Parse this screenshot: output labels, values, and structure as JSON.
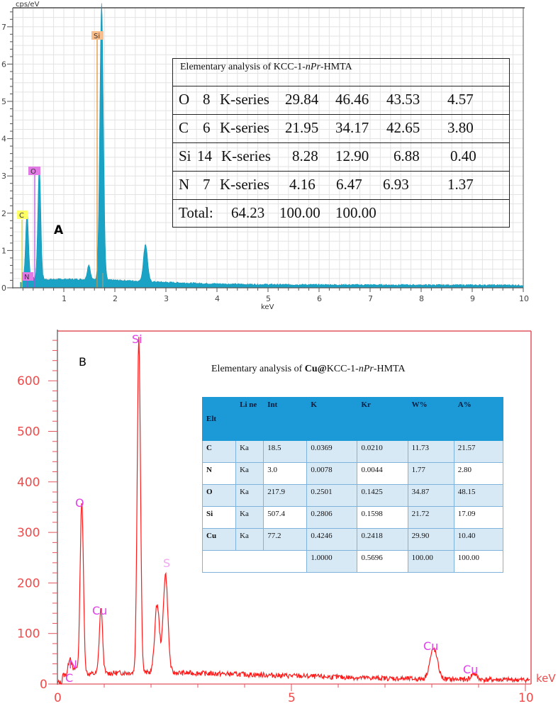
{
  "chart_data": [
    {
      "panel": "A",
      "type": "area",
      "title": "",
      "panel_label": "A",
      "xlabel": "keV",
      "ylabel": "cps/eV",
      "xlim": [
        0,
        10
      ],
      "ylim": [
        0,
        7.5
      ],
      "x_ticks": [
        "1",
        "2",
        "3",
        "4",
        "5",
        "6",
        "7",
        "8",
        "9",
        "10"
      ],
      "y_ticks": [
        "0",
        "1",
        "2",
        "3",
        "4",
        "5",
        "6",
        "7"
      ],
      "grid": true,
      "series_color": "#1aa3c4",
      "peaks": [
        {
          "element": "C",
          "x": 0.28,
          "y": 1.85,
          "label_bg": "#ffff66"
        },
        {
          "element": "N",
          "x": 0.39,
          "y": 0.15,
          "label_bg": "#e27ae6"
        },
        {
          "element": "O",
          "x": 0.52,
          "y": 3.1,
          "label_bg": "#e27ae6"
        },
        {
          "element": "Si",
          "x": 1.74,
          "y": 7.4,
          "label_bg": "#f9be8c"
        },
        {
          "element": "",
          "x": 1.49,
          "y": 0.4
        },
        {
          "element": "",
          "x": 2.6,
          "y": 1.0
        }
      ],
      "table": {
        "title_prefix": "Elementary analysis of KCC-1-",
        "title_italic": "nPr",
        "title_suffix": "-HMTA",
        "rows": [
          [
            "O",
            "8",
            "K-series",
            "29.84",
            "46.46",
            "43.53",
            "4.57"
          ],
          [
            "C",
            "6",
            "K-series",
            "21.95",
            "34.17",
            "42.65",
            "3.80"
          ],
          [
            "Si",
            "14",
            "K-series",
            "8.28",
            "12.90",
            "6.88",
            "0.40"
          ],
          [
            "N",
            "7",
            "K-series",
            "4.16",
            "6.47",
            "6.93",
            "1.37"
          ]
        ],
        "total": [
          "Total:",
          "64.23",
          "100.00",
          "100.00"
        ]
      }
    },
    {
      "panel": "B",
      "type": "line",
      "title": "",
      "panel_label": "B",
      "xlabel": "keV",
      "ylabel": "",
      "xlim": [
        0,
        10.2
      ],
      "ylim": [
        0,
        680
      ],
      "x_ticks": [
        "0",
        "5",
        "10"
      ],
      "y_ticks": [
        "0",
        "100",
        "200",
        "300",
        "400",
        "500",
        "600"
      ],
      "grid": false,
      "series_color": "#ff0000",
      "peaks": [
        {
          "element": "C",
          "x": 0.27,
          "y": 35
        },
        {
          "element": "N",
          "x": 0.39,
          "y": 12
        },
        {
          "element": "O",
          "x": 0.52,
          "y": 345
        },
        {
          "element": "Cu",
          "x": 0.93,
          "y": 128
        },
        {
          "element": "Si",
          "x": 1.74,
          "y": 665
        },
        {
          "element": "",
          "x": 2.13,
          "y": 135
        },
        {
          "element": "S",
          "x": 2.31,
          "y": 195
        },
        {
          "element": "Cu",
          "x": 8.04,
          "y": 60
        },
        {
          "element": "Cu",
          "x": 8.9,
          "y": 12
        }
      ],
      "table": {
        "title_prefix": "Elementary analysis of ",
        "title_bold": "Cu@",
        "title_middle": "KCC-1-",
        "title_italic": "nPr",
        "title_suffix": "-HMTA",
        "columns": [
          "Elt",
          "Li ne",
          "Int",
          "K",
          "Kr",
          "W%",
          "A%"
        ],
        "rows": [
          [
            "C",
            "Ka",
            "18.5",
            "0.0369",
            "0.0210",
            "11.73",
            "21.57"
          ],
          [
            "N",
            "Ka",
            "3.0",
            "0.0078",
            "0.0044",
            "1.77",
            "2.80"
          ],
          [
            "O",
            "Ka",
            "217.9",
            "0.2501",
            "0.1425",
            "34.87",
            "48.15"
          ],
          [
            "Si",
            "Ka",
            "507.4",
            "0.2806",
            "0.1598",
            "21.72",
            "17.09"
          ],
          [
            "Cu",
            "Ka",
            "77.2",
            "0.4246",
            "0.2418",
            "29.90",
            "10.40"
          ]
        ],
        "total": [
          "",
          "",
          "",
          "1.0000",
          "0.5696",
          "100.00",
          "100.00"
        ]
      }
    }
  ],
  "panelA": {
    "ylabel": "cps/eV",
    "xlabel": "keV",
    "label": "A",
    "peak_labels": {
      "c": "C",
      "n": "N",
      "o": "O",
      "si": "Si"
    },
    "yticks": [
      "0",
      "1",
      "2",
      "3",
      "4",
      "5",
      "6",
      "7"
    ],
    "xticks": [
      "1",
      "2",
      "3",
      "4",
      "5",
      "6",
      "7",
      "8",
      "9",
      "10"
    ],
    "table": {
      "title_prefix": "Elementary analysis of KCC-1-",
      "title_italic": "nPr",
      "title_suffix": "-HMTA",
      "rows": [
        [
          "O",
          "8",
          "K-series",
          "29.84",
          "46.46",
          "43.53",
          "4.57"
        ],
        [
          "C",
          "6",
          "K-series",
          "21.95",
          "34.17",
          "42.65",
          "3.80"
        ],
        [
          "Si",
          "14",
          "K-series",
          "8.28",
          "12.90",
          "6.88",
          "0.40"
        ],
        [
          "N",
          "7",
          "K-series",
          "4.16",
          "6.47",
          "6.93",
          "1.37"
        ]
      ],
      "total": [
        "Total:",
        "64.23",
        "100.00",
        "100.00"
      ]
    }
  },
  "panelB": {
    "label": "B",
    "xlabel": "keV",
    "peak_labels": {
      "c": "C",
      "n": "N",
      "o": "O",
      "cu1": "Cu",
      "si": "Si",
      "s": "S",
      "cu2": "Cu",
      "cu3": "Cu"
    },
    "yticks": [
      "0",
      "100",
      "200",
      "300",
      "400",
      "500",
      "600"
    ],
    "xticks": [
      "0",
      "5",
      "10"
    ],
    "table": {
      "title_prefix": "Elementary analysis of ",
      "title_bold": "Cu@",
      "title_middle": "KCC-1-",
      "title_italic": "nPr",
      "title_suffix": "-HMTA",
      "columns": [
        "Elt",
        "Li ne",
        "Int",
        "K",
        "Kr",
        "W%",
        "A%"
      ],
      "rows": [
        [
          "C",
          "Ka",
          "18.5",
          "0.0369",
          "0.0210",
          "11.73",
          "21.57"
        ],
        [
          "N",
          "Ka",
          "3.0",
          "0.0078",
          "0.0044",
          "1.77",
          "2.80"
        ],
        [
          "O",
          "Ka",
          "217.9",
          "0.2501",
          "0.1425",
          "34.87",
          "48.15"
        ],
        [
          "Si",
          "Ka",
          "507.4",
          "0.2806",
          "0.1598",
          "21.72",
          "17.09"
        ],
        [
          "Cu",
          "Ka",
          "77.2",
          "0.4246",
          "0.2418",
          "29.90",
          "10.40"
        ]
      ],
      "total": [
        "",
        "",
        "",
        "1.0000",
        "0.5696",
        "100.00",
        "100.00"
      ]
    }
  }
}
